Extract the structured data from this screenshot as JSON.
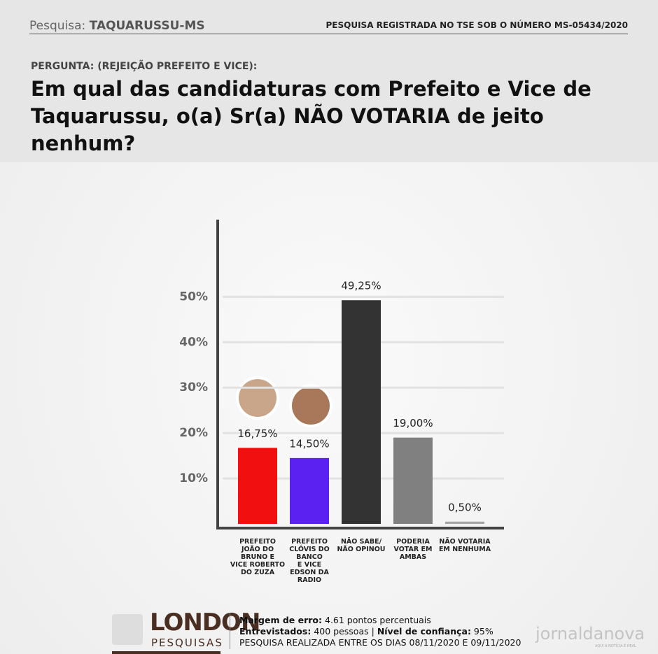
{
  "header": {
    "label": "Pesquisa:",
    "place": "TAQUARUSSU-MS",
    "registration": "PESQUISA REGISTRADA NO TSE SOB O NÚMERO MS-05434/2020"
  },
  "question": {
    "label": "PERGUNTA: (REJEIÇÃO PREFEITO E VICE):",
    "text": "Em qual das candidaturas com Prefeito e Vice de Taquarussu, o(a) Sr(a) NÃO VOTARIA de jeito nenhum?"
  },
  "chart_data": {
    "type": "bar",
    "categories": [
      "PREFEITO\nJOÃO DO\nBRUNO E\nVICE ROBERTO\nDO ZUZA",
      "PREFEITO\nCLÓVIS DO\nBANCO\nE VICE\nEDSON DA\nRADIO",
      "NÃO SABE/\nNÃO OPINOU",
      "PODERIA\nVOTAR EM\nAMBAS",
      "NÃO VOTARIA\nEM NENHUMA"
    ],
    "values": [
      16.75,
      14.5,
      49.25,
      19,
      0.5
    ],
    "value_labels": [
      "16,75%",
      "14,50%",
      "49,25%",
      "19,00%",
      "0,50%"
    ],
    "colors": [
      "#f20f0f",
      "#5a21f0",
      "#333333",
      "#808080",
      "#a6a6a6"
    ],
    "ylim": [
      0,
      67
    ],
    "yticks": [
      {
        "value": 10,
        "label": "10%"
      },
      {
        "value": 20,
        "label": "20%"
      },
      {
        "value": 30,
        "label": "30%"
      },
      {
        "value": 40,
        "label": "40%"
      },
      {
        "value": 50,
        "label": "50%"
      }
    ],
    "grid": true
  },
  "footer": {
    "brand": "LONDON",
    "brand_sub": "PESQUISAS",
    "margin_label": "Margem de erro:",
    "margin_value": "4.61 pontos percentuais",
    "interviewed_label": "Entrevistados:",
    "interviewed_value": "400 pessoas",
    "separator": "|",
    "confidence_label": "Nível de confiança:",
    "confidence_value": "95%",
    "period": "PESQUISA REALIZADA ENTRE OS DIAS 08/11/2020 E 09/11/2020",
    "watermark": "jornaldanova",
    "watermark_sub": "AQUI A NOTÍCIA É REAL"
  }
}
